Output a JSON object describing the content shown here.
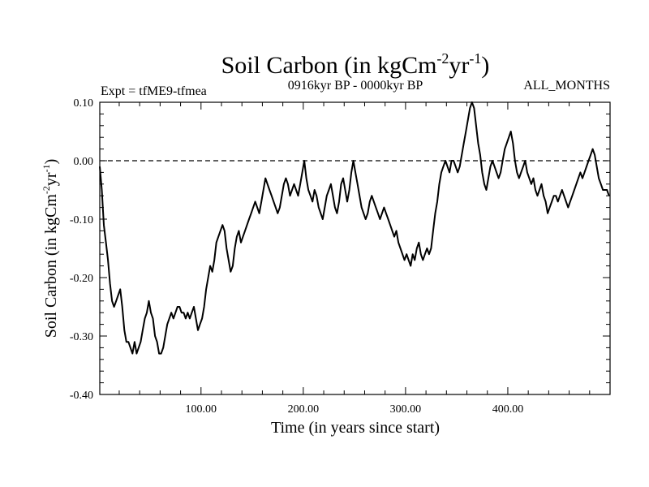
{
  "chart_data": {
    "type": "line",
    "title_main": "Soil Carbon (in kgCm",
    "title_sup1": "-2",
    "title_mid": "yr",
    "title_sup2": "-1",
    "title_end": ")",
    "subtitle_left": "Expt = tfME9-tfmea",
    "subtitle_center": "0916kyr BP - 0000kyr BP",
    "subtitle_right": "ALL_MONTHS",
    "xlabel": "Time (in years since start)",
    "ylabel_main": "Soil Carbon (in kgCm",
    "ylabel_sup1": "-2",
    "ylabel_mid": "yr",
    "ylabel_sup2": "-1",
    "ylabel_end": ")",
    "xlim": [
      1,
      500
    ],
    "ylim": [
      -0.4,
      0.1
    ],
    "xticks": [
      100,
      200,
      300,
      400
    ],
    "xtick_labels": [
      "100.00",
      "200.00",
      "300.00",
      "400.00"
    ],
    "yticks": [
      0.1,
      0.0,
      -0.1,
      -0.2,
      -0.3,
      -0.4
    ],
    "ytick_labels": [
      "0.10",
      "0.00",
      "-0.10",
      "-0.20",
      "-0.30",
      "-0.40"
    ],
    "reference_line": 0.0,
    "series": [
      {
        "name": "Soil Carbon",
        "points": [
          [
            1,
            -0.01
          ],
          [
            3,
            -0.05
          ],
          [
            5,
            -0.11
          ],
          [
            7,
            -0.14
          ],
          [
            9,
            -0.17
          ],
          [
            11,
            -0.21
          ],
          [
            13,
            -0.24
          ],
          [
            15,
            -0.25
          ],
          [
            17,
            -0.24
          ],
          [
            19,
            -0.23
          ],
          [
            21,
            -0.22
          ],
          [
            23,
            -0.25
          ],
          [
            25,
            -0.29
          ],
          [
            27,
            -0.31
          ],
          [
            29,
            -0.31
          ],
          [
            31,
            -0.32
          ],
          [
            33,
            -0.33
          ],
          [
            35,
            -0.31
          ],
          [
            37,
            -0.33
          ],
          [
            39,
            -0.32
          ],
          [
            41,
            -0.31
          ],
          [
            43,
            -0.29
          ],
          [
            45,
            -0.27
          ],
          [
            47,
            -0.26
          ],
          [
            49,
            -0.24
          ],
          [
            51,
            -0.26
          ],
          [
            53,
            -0.27
          ],
          [
            55,
            -0.3
          ],
          [
            57,
            -0.31
          ],
          [
            59,
            -0.33
          ],
          [
            61,
            -0.33
          ],
          [
            63,
            -0.32
          ],
          [
            65,
            -0.3
          ],
          [
            67,
            -0.28
          ],
          [
            69,
            -0.27
          ],
          [
            71,
            -0.26
          ],
          [
            73,
            -0.27
          ],
          [
            75,
            -0.26
          ],
          [
            77,
            -0.25
          ],
          [
            79,
            -0.25
          ],
          [
            81,
            -0.26
          ],
          [
            83,
            -0.26
          ],
          [
            85,
            -0.27
          ],
          [
            87,
            -0.26
          ],
          [
            89,
            -0.27
          ],
          [
            91,
            -0.26
          ],
          [
            93,
            -0.25
          ],
          [
            95,
            -0.27
          ],
          [
            97,
            -0.29
          ],
          [
            99,
            -0.28
          ],
          [
            101,
            -0.27
          ],
          [
            103,
            -0.25
          ],
          [
            105,
            -0.22
          ],
          [
            107,
            -0.2
          ],
          [
            109,
            -0.18
          ],
          [
            111,
            -0.19
          ],
          [
            113,
            -0.17
          ],
          [
            115,
            -0.14
          ],
          [
            117,
            -0.13
          ],
          [
            119,
            -0.12
          ],
          [
            121,
            -0.11
          ],
          [
            123,
            -0.12
          ],
          [
            125,
            -0.15
          ],
          [
            127,
            -0.17
          ],
          [
            129,
            -0.19
          ],
          [
            131,
            -0.18
          ],
          [
            133,
            -0.15
          ],
          [
            135,
            -0.13
          ],
          [
            137,
            -0.12
          ],
          [
            139,
            -0.14
          ],
          [
            141,
            -0.13
          ],
          [
            143,
            -0.12
          ],
          [
            145,
            -0.11
          ],
          [
            147,
            -0.1
          ],
          [
            149,
            -0.09
          ],
          [
            151,
            -0.08
          ],
          [
            153,
            -0.07
          ],
          [
            155,
            -0.08
          ],
          [
            157,
            -0.09
          ],
          [
            159,
            -0.07
          ],
          [
            161,
            -0.05
          ],
          [
            163,
            -0.03
          ],
          [
            165,
            -0.04
          ],
          [
            167,
            -0.05
          ],
          [
            169,
            -0.06
          ],
          [
            171,
            -0.07
          ],
          [
            173,
            -0.08
          ],
          [
            175,
            -0.09
          ],
          [
            177,
            -0.08
          ],
          [
            179,
            -0.06
          ],
          [
            181,
            -0.04
          ],
          [
            183,
            -0.03
          ],
          [
            185,
            -0.04
          ],
          [
            187,
            -0.06
          ],
          [
            189,
            -0.05
          ],
          [
            191,
            -0.04
          ],
          [
            193,
            -0.05
          ],
          [
            195,
            -0.06
          ],
          [
            197,
            -0.04
          ],
          [
            199,
            -0.02
          ],
          [
            201,
            0.0
          ],
          [
            203,
            -0.03
          ],
          [
            205,
            -0.05
          ],
          [
            207,
            -0.06
          ],
          [
            209,
            -0.07
          ],
          [
            211,
            -0.05
          ],
          [
            213,
            -0.06
          ],
          [
            215,
            -0.08
          ],
          [
            217,
            -0.09
          ],
          [
            219,
            -0.1
          ],
          [
            221,
            -0.08
          ],
          [
            223,
            -0.06
          ],
          [
            225,
            -0.05
          ],
          [
            227,
            -0.04
          ],
          [
            229,
            -0.06
          ],
          [
            231,
            -0.08
          ],
          [
            233,
            -0.09
          ],
          [
            235,
            -0.07
          ],
          [
            237,
            -0.04
          ],
          [
            239,
            -0.03
          ],
          [
            241,
            -0.05
          ],
          [
            243,
            -0.07
          ],
          [
            245,
            -0.05
          ],
          [
            247,
            -0.02
          ],
          [
            249,
            0.0
          ],
          [
            251,
            -0.02
          ],
          [
            253,
            -0.04
          ],
          [
            255,
            -0.06
          ],
          [
            257,
            -0.08
          ],
          [
            259,
            -0.09
          ],
          [
            261,
            -0.1
          ],
          [
            263,
            -0.09
          ],
          [
            265,
            -0.07
          ],
          [
            267,
            -0.06
          ],
          [
            269,
            -0.07
          ],
          [
            271,
            -0.08
          ],
          [
            273,
            -0.09
          ],
          [
            275,
            -0.1
          ],
          [
            277,
            -0.09
          ],
          [
            279,
            -0.08
          ],
          [
            281,
            -0.09
          ],
          [
            283,
            -0.1
          ],
          [
            285,
            -0.11
          ],
          [
            287,
            -0.12
          ],
          [
            289,
            -0.13
          ],
          [
            291,
            -0.12
          ],
          [
            293,
            -0.14
          ],
          [
            295,
            -0.15
          ],
          [
            297,
            -0.16
          ],
          [
            299,
            -0.17
          ],
          [
            301,
            -0.16
          ],
          [
            303,
            -0.17
          ],
          [
            305,
            -0.18
          ],
          [
            307,
            -0.16
          ],
          [
            309,
            -0.17
          ],
          [
            311,
            -0.15
          ],
          [
            313,
            -0.14
          ],
          [
            315,
            -0.16
          ],
          [
            317,
            -0.17
          ],
          [
            319,
            -0.16
          ],
          [
            321,
            -0.15
          ],
          [
            323,
            -0.16
          ],
          [
            325,
            -0.15
          ],
          [
            327,
            -0.12
          ],
          [
            329,
            -0.09
          ],
          [
            331,
            -0.07
          ],
          [
            333,
            -0.04
          ],
          [
            335,
            -0.02
          ],
          [
            337,
            -0.01
          ],
          [
            339,
            0.0
          ],
          [
            341,
            -0.01
          ],
          [
            343,
            -0.02
          ],
          [
            345,
            0.0
          ],
          [
            347,
            0.0
          ],
          [
            349,
            -0.01
          ],
          [
            351,
            -0.02
          ],
          [
            353,
            -0.01
          ],
          [
            355,
            0.01
          ],
          [
            357,
            0.03
          ],
          [
            359,
            0.05
          ],
          [
            361,
            0.07
          ],
          [
            363,
            0.09
          ],
          [
            365,
            0.1
          ],
          [
            367,
            0.09
          ],
          [
            369,
            0.06
          ],
          [
            371,
            0.03
          ],
          [
            373,
            0.01
          ],
          [
            375,
            -0.02
          ],
          [
            377,
            -0.04
          ],
          [
            379,
            -0.05
          ],
          [
            381,
            -0.03
          ],
          [
            383,
            -0.01
          ],
          [
            385,
            0.0
          ],
          [
            387,
            -0.01
          ],
          [
            389,
            -0.02
          ],
          [
            391,
            -0.03
          ],
          [
            393,
            -0.02
          ],
          [
            395,
            0.0
          ],
          [
            397,
            0.02
          ],
          [
            399,
            0.03
          ],
          [
            401,
            0.04
          ],
          [
            403,
            0.05
          ],
          [
            405,
            0.03
          ],
          [
            407,
            0.0
          ],
          [
            409,
            -0.02
          ],
          [
            411,
            -0.03
          ],
          [
            413,
            -0.02
          ],
          [
            415,
            -0.01
          ],
          [
            417,
            0.0
          ],
          [
            419,
            -0.02
          ],
          [
            421,
            -0.03
          ],
          [
            423,
            -0.04
          ],
          [
            425,
            -0.03
          ],
          [
            427,
            -0.05
          ],
          [
            429,
            -0.06
          ],
          [
            431,
            -0.05
          ],
          [
            433,
            -0.04
          ],
          [
            435,
            -0.06
          ],
          [
            437,
            -0.07
          ],
          [
            439,
            -0.09
          ],
          [
            441,
            -0.08
          ],
          [
            443,
            -0.07
          ],
          [
            445,
            -0.06
          ],
          [
            447,
            -0.06
          ],
          [
            449,
            -0.07
          ],
          [
            451,
            -0.06
          ],
          [
            453,
            -0.05
          ],
          [
            455,
            -0.06
          ],
          [
            457,
            -0.07
          ],
          [
            459,
            -0.08
          ],
          [
            461,
            -0.07
          ],
          [
            463,
            -0.06
          ],
          [
            465,
            -0.05
          ],
          [
            467,
            -0.04
          ],
          [
            469,
            -0.03
          ],
          [
            471,
            -0.02
          ],
          [
            473,
            -0.03
          ],
          [
            475,
            -0.02
          ],
          [
            477,
            -0.01
          ],
          [
            479,
            0.0
          ],
          [
            481,
            0.01
          ],
          [
            483,
            0.02
          ],
          [
            485,
            0.01
          ],
          [
            487,
            -0.01
          ],
          [
            489,
            -0.03
          ],
          [
            491,
            -0.04
          ],
          [
            493,
            -0.05
          ],
          [
            495,
            -0.05
          ],
          [
            497,
            -0.05
          ],
          [
            499,
            -0.06
          ]
        ]
      }
    ]
  }
}
